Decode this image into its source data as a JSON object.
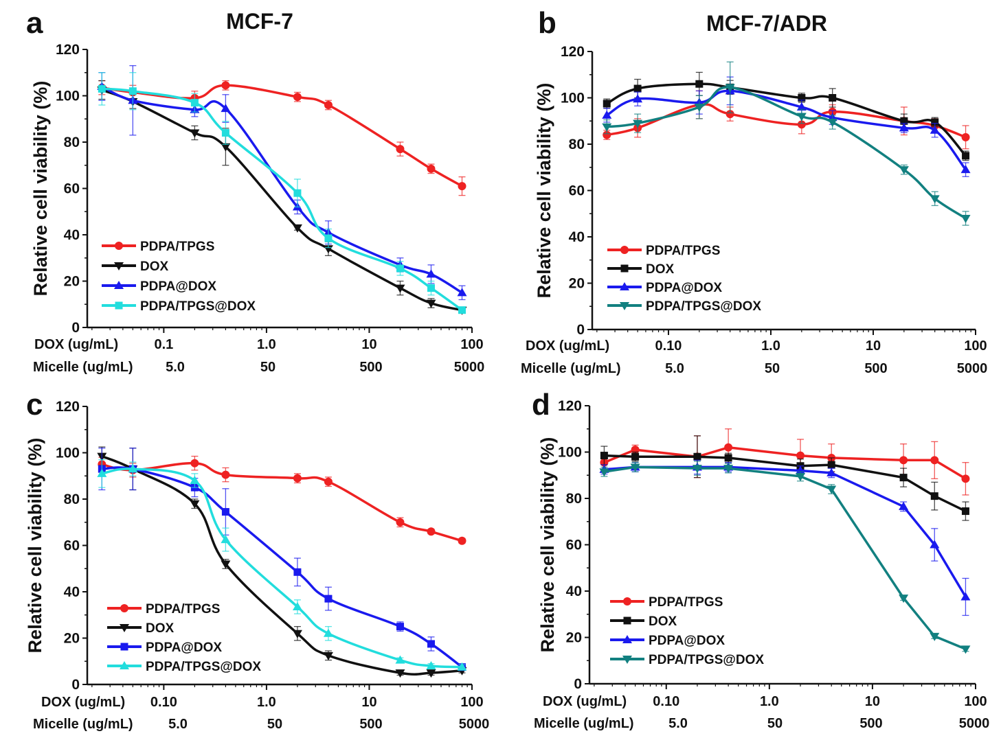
{
  "colors": {
    "PDPA/TPGS": "#ee2222",
    "DOX": "#111111",
    "PDPA@DOX": "#1a1aee",
    "PDPA/TPGS@DOX_cyan": "#22dddd",
    "PDPA/TPGS@DOX_teal": "#128080"
  },
  "chart_data": [
    {
      "panel": "a",
      "title": "MCF-7",
      "type": "line",
      "ylabel": "Relative cell viability (%)",
      "ylim": [
        0,
        120
      ],
      "yticks": [
        "0",
        "20",
        "40",
        "60",
        "80",
        "100",
        "120"
      ],
      "x_row1_label": "DOX (ug/mL)",
      "x_row1_ticks": [
        "0.1",
        "1.0",
        "10",
        "100"
      ],
      "x_row2_label": "Micelle (ug/mL)",
      "x_row2_ticks": [
        "5.0",
        "50",
        "500",
        "5000"
      ],
      "x": [
        0.025,
        0.05,
        0.2,
        0.4,
        2,
        4,
        20,
        40,
        80
      ],
      "series": [
        {
          "name": "PDPA/TPGS",
          "color": "#ee2222",
          "marker": "circle",
          "values": [
            103.5,
            101.5,
            99,
            104.5,
            99.5,
            96,
            77,
            68.5,
            61
          ],
          "errors": [
            3,
            3,
            3,
            2,
            2,
            2,
            3,
            2,
            4
          ]
        },
        {
          "name": "DOX",
          "color": "#111111",
          "marker": "triangle-down",
          "values": [
            102.5,
            97.5,
            84,
            78,
            43,
            34,
            17,
            10.5,
            7.5
          ],
          "errors": [
            4,
            3,
            3,
            8,
            1,
            3,
            3,
            2,
            1
          ]
        },
        {
          "name": "PDPA@DOX",
          "color": "#1a1aee",
          "marker": "triangle-up",
          "values": [
            104,
            98,
            94,
            94.5,
            52,
            41,
            27,
            23,
            15
          ],
          "errors": [
            6,
            15,
            3,
            6,
            3,
            5,
            3,
            4,
            3
          ]
        },
        {
          "name": "PDPA/TPGS@DOX",
          "color": "#22dddd",
          "marker": "square",
          "values": [
            103,
            102,
            97,
            84,
            58,
            38.5,
            25.5,
            17,
            7.5
          ],
          "errors": [
            7,
            8,
            4,
            5,
            6,
            4,
            3,
            3,
            1
          ]
        }
      ]
    },
    {
      "panel": "b",
      "title": "MCF-7/ADR",
      "type": "line",
      "ylabel": "Relative cell viability (%)",
      "ylim": [
        0,
        120
      ],
      "yticks": [
        "0",
        "20",
        "40",
        "60",
        "80",
        "100",
        "120"
      ],
      "x_row1_label": "DOX (ug/mL)",
      "x_row1_ticks": [
        "0.10",
        "1.0",
        "10",
        "100"
      ],
      "x_row2_label": "Micelle (ug/mL)",
      "x_row2_ticks": [
        "5.0",
        "50",
        "500",
        "5000"
      ],
      "x": [
        0.025,
        0.05,
        0.2,
        0.4,
        2,
        4,
        20,
        40,
        80
      ],
      "series": [
        {
          "name": "PDPA/TPGS",
          "color": "#ee2222",
          "marker": "circle",
          "values": [
            84,
            87,
            97,
            93,
            88.5,
            94,
            90,
            88,
            83
          ],
          "errors": [
            2,
            4,
            6,
            3,
            4,
            3,
            6,
            3,
            5
          ]
        },
        {
          "name": "DOX",
          "color": "#111111",
          "marker": "square",
          "values": [
            97.5,
            104,
            106,
            104.5,
            100,
            100,
            90,
            89.5,
            75
          ],
          "errors": [
            2,
            4,
            5,
            3,
            2,
            4,
            3,
            2,
            2
          ]
        },
        {
          "name": "PDPA@DOX",
          "color": "#1a1aee",
          "marker": "triangle-up",
          "values": [
            92.5,
            99.5,
            98,
            103,
            96,
            91.5,
            87,
            86,
            69
          ],
          "errors": [
            3,
            3,
            5,
            6,
            3,
            3,
            2,
            3,
            3
          ]
        },
        {
          "name": "PDPA/TPGS@DOX",
          "color": "#128080",
          "marker": "triangle-down",
          "values": [
            87.5,
            89,
            96,
            104.5,
            92,
            89.5,
            69,
            56.5,
            48
          ],
          "errors": [
            3,
            4,
            5,
            11,
            3,
            3,
            2,
            3,
            3
          ]
        }
      ]
    },
    {
      "panel": "c",
      "title": "",
      "type": "line",
      "ylabel": "Relative cell viability (%)",
      "ylim": [
        0,
        120
      ],
      "yticks": [
        "0",
        "20",
        "40",
        "60",
        "80",
        "100",
        "120"
      ],
      "x_row1_label": "DOX (ug/mL)",
      "x_row1_ticks": [
        "0.10",
        "1.0",
        "10",
        "100"
      ],
      "x_row2_label": "Micelle (ug/mL)",
      "x_row2_ticks": [
        "5.0",
        "50",
        "500",
        "5000"
      ],
      "x": [
        0.025,
        0.05,
        0.2,
        0.4,
        2,
        4,
        20,
        40,
        80
      ],
      "series": [
        {
          "name": "PDPA/TPGS",
          "color": "#ee2222",
          "marker": "circle",
          "values": [
            95,
            92.5,
            95.5,
            90.5,
            89,
            87.5,
            70,
            66,
            62
          ],
          "errors": [
            3,
            3,
            3,
            3,
            2,
            2,
            2,
            1,
            1
          ]
        },
        {
          "name": "DOX",
          "color": "#111111",
          "marker": "triangle-down",
          "values": [
            98.5,
            93,
            78,
            52,
            22,
            12.5,
            5,
            5,
            6
          ],
          "errors": [
            4,
            9,
            2,
            2,
            3,
            2,
            1,
            1,
            1
          ]
        },
        {
          "name": "PDPA@DOX",
          "color": "#1a1aee",
          "marker": "square",
          "values": [
            93,
            93,
            85,
            74.5,
            48.5,
            37,
            25,
            17.5,
            7.5
          ],
          "errors": [
            9,
            9,
            4,
            10,
            6,
            5,
            2,
            3,
            1
          ]
        },
        {
          "name": "PDPA/TPGS@DOX",
          "color": "#22dddd",
          "marker": "triangle-up",
          "values": [
            91,
            93,
            88,
            62.5,
            33.5,
            22,
            10.5,
            8,
            7.5
          ],
          "errors": [
            6,
            3,
            3,
            5,
            3,
            3,
            1,
            1,
            1
          ]
        }
      ]
    },
    {
      "panel": "d",
      "title": "",
      "type": "line",
      "ylabel": "Relative cell viability (%)",
      "ylim": [
        0,
        120
      ],
      "yticks": [
        "0",
        "20",
        "40",
        "60",
        "80",
        "100",
        "120"
      ],
      "x_row1_label": "DOX (ug/mL)",
      "x_row1_ticks": [
        "0.10",
        "1.0",
        "10",
        "100"
      ],
      "x_row2_label": "Micelle (ug/mL)",
      "x_row2_ticks": [
        "5.0",
        "50",
        "500",
        "5000"
      ],
      "x": [
        0.025,
        0.05,
        0.2,
        0.4,
        2,
        4,
        20,
        40,
        80
      ],
      "series": [
        {
          "name": "PDPA/TPGS",
          "color": "#ee2222",
          "marker": "circle",
          "values": [
            95.5,
            101,
            98,
            102,
            98.5,
            97.5,
            96.5,
            96.5,
            88.5
          ],
          "errors": [
            4,
            2,
            9,
            8,
            7,
            6,
            7,
            8,
            7
          ]
        },
        {
          "name": "DOX",
          "color": "#111111",
          "marker": "square",
          "values": [
            98.5,
            98,
            98,
            97.5,
            94,
            94.5,
            89,
            81,
            74.5
          ],
          "errors": [
            4,
            2,
            9,
            2,
            3,
            3,
            4,
            6,
            4
          ]
        },
        {
          "name": "PDPA@DOX",
          "color": "#1a1aee",
          "marker": "triangle-up",
          "values": [
            92.5,
            93.5,
            93.5,
            93.5,
            92,
            91,
            76.5,
            60,
            37.5
          ],
          "errors": [
            2,
            2,
            3,
            2,
            2,
            2,
            2,
            7,
            8
          ]
        },
        {
          "name": "PDPA/TPGS@DOX",
          "color": "#128080",
          "marker": "triangle-down",
          "values": [
            91.5,
            93.5,
            93,
            93,
            89.5,
            84,
            37,
            20.5,
            15
          ],
          "errors": [
            2,
            2,
            3,
            2,
            2,
            2,
            1,
            1,
            1
          ]
        }
      ]
    }
  ]
}
